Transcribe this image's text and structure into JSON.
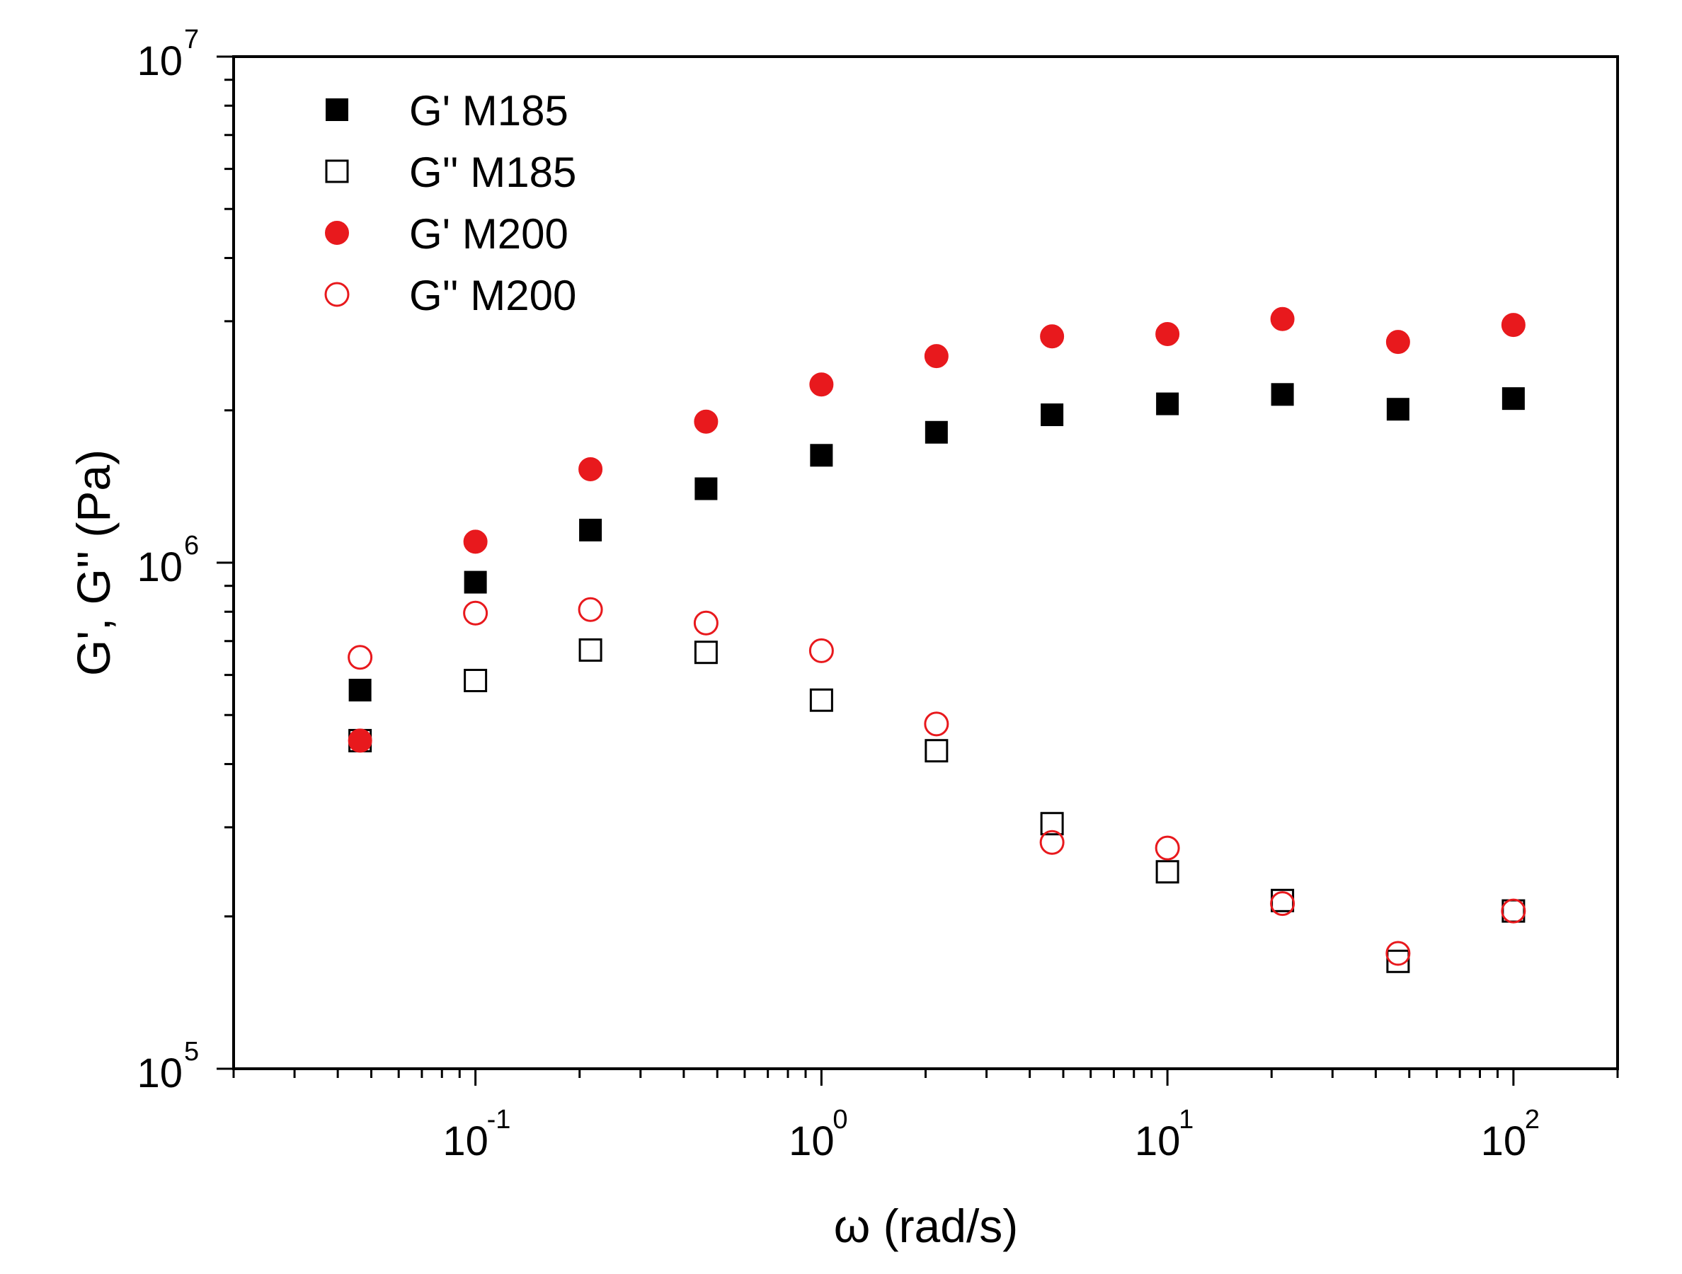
{
  "chart_data": {
    "type": "scatter",
    "x_scale": "log",
    "y_scale": "log",
    "xlabel": "ω (rad/s)",
    "ylabel": "G', G'' (Pa)",
    "xlim": [
      0.02,
      200
    ],
    "ylim": [
      100000,
      10000000
    ],
    "x_ticks": [
      {
        "base": "10",
        "exp": "-1",
        "value": 0.1
      },
      {
        "base": "10",
        "exp": "0",
        "value": 1
      },
      {
        "base": "10",
        "exp": "1",
        "value": 10
      },
      {
        "base": "10",
        "exp": "2",
        "value": 100
      }
    ],
    "y_ticks": [
      {
        "base": "10",
        "exp": "5",
        "value": 100000
      },
      {
        "base": "10",
        "exp": "6",
        "value": 1000000
      },
      {
        "base": "10",
        "exp": "7",
        "value": 10000000
      }
    ],
    "legend_position": "top-left",
    "x": [
      0.0464,
      0.1,
      0.215,
      0.464,
      1,
      2.15,
      4.64,
      10,
      21.5,
      46.4,
      100
    ],
    "series": [
      {
        "name": "G' M185",
        "marker": "square",
        "filled": true,
        "color": "#000000",
        "values": [
          560000,
          915000,
          1160000,
          1400000,
          1630000,
          1810000,
          1960000,
          2060000,
          2150000,
          2010000,
          2110000
        ]
      },
      {
        "name": "G'' M185",
        "marker": "square",
        "filled": false,
        "color": "#000000",
        "values": [
          445000,
          585000,
          672000,
          665000,
          535000,
          425000,
          305000,
          245000,
          215000,
          163000,
          205000
        ]
      },
      {
        "name": "G' M200",
        "marker": "circle",
        "filled": true,
        "color": "#e8191d",
        "values": [
          445000,
          1100000,
          1530000,
          1900000,
          2250000,
          2560000,
          2800000,
          2830000,
          3030000,
          2730000,
          2950000
        ]
      },
      {
        "name": "G'' M200",
        "marker": "circle",
        "filled": false,
        "color": "#e8191d",
        "values": [
          650000,
          795000,
          808000,
          760000,
          670000,
          480000,
          280000,
          273000,
          212000,
          169000,
          205000
        ]
      }
    ]
  }
}
